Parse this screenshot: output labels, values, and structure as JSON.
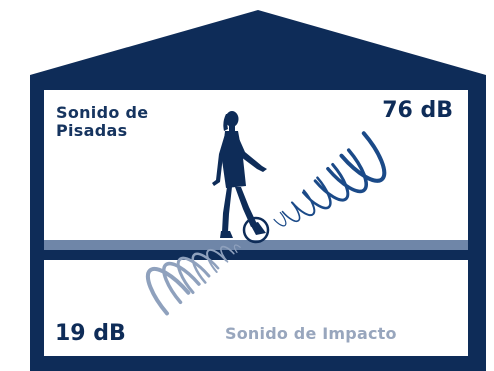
{
  "upper_room": {
    "label_line1": "Sonido de",
    "label_line2": "Pisadas",
    "level": "76 dB"
  },
  "lower_room": {
    "level": "19 dB",
    "label": "Sonido de Impacto"
  },
  "colors": {
    "structure": "#0e2c58",
    "floor_slab": "#6f86a8",
    "upper_waves": "#1b4a88",
    "lower_waves": "#8fa1bd",
    "lower_label": "#98a6bd"
  },
  "icons": [
    "house-frame",
    "walking-woman-silhouette",
    "impact-point-circle",
    "sound-waves-upper",
    "sound-waves-lower"
  ]
}
